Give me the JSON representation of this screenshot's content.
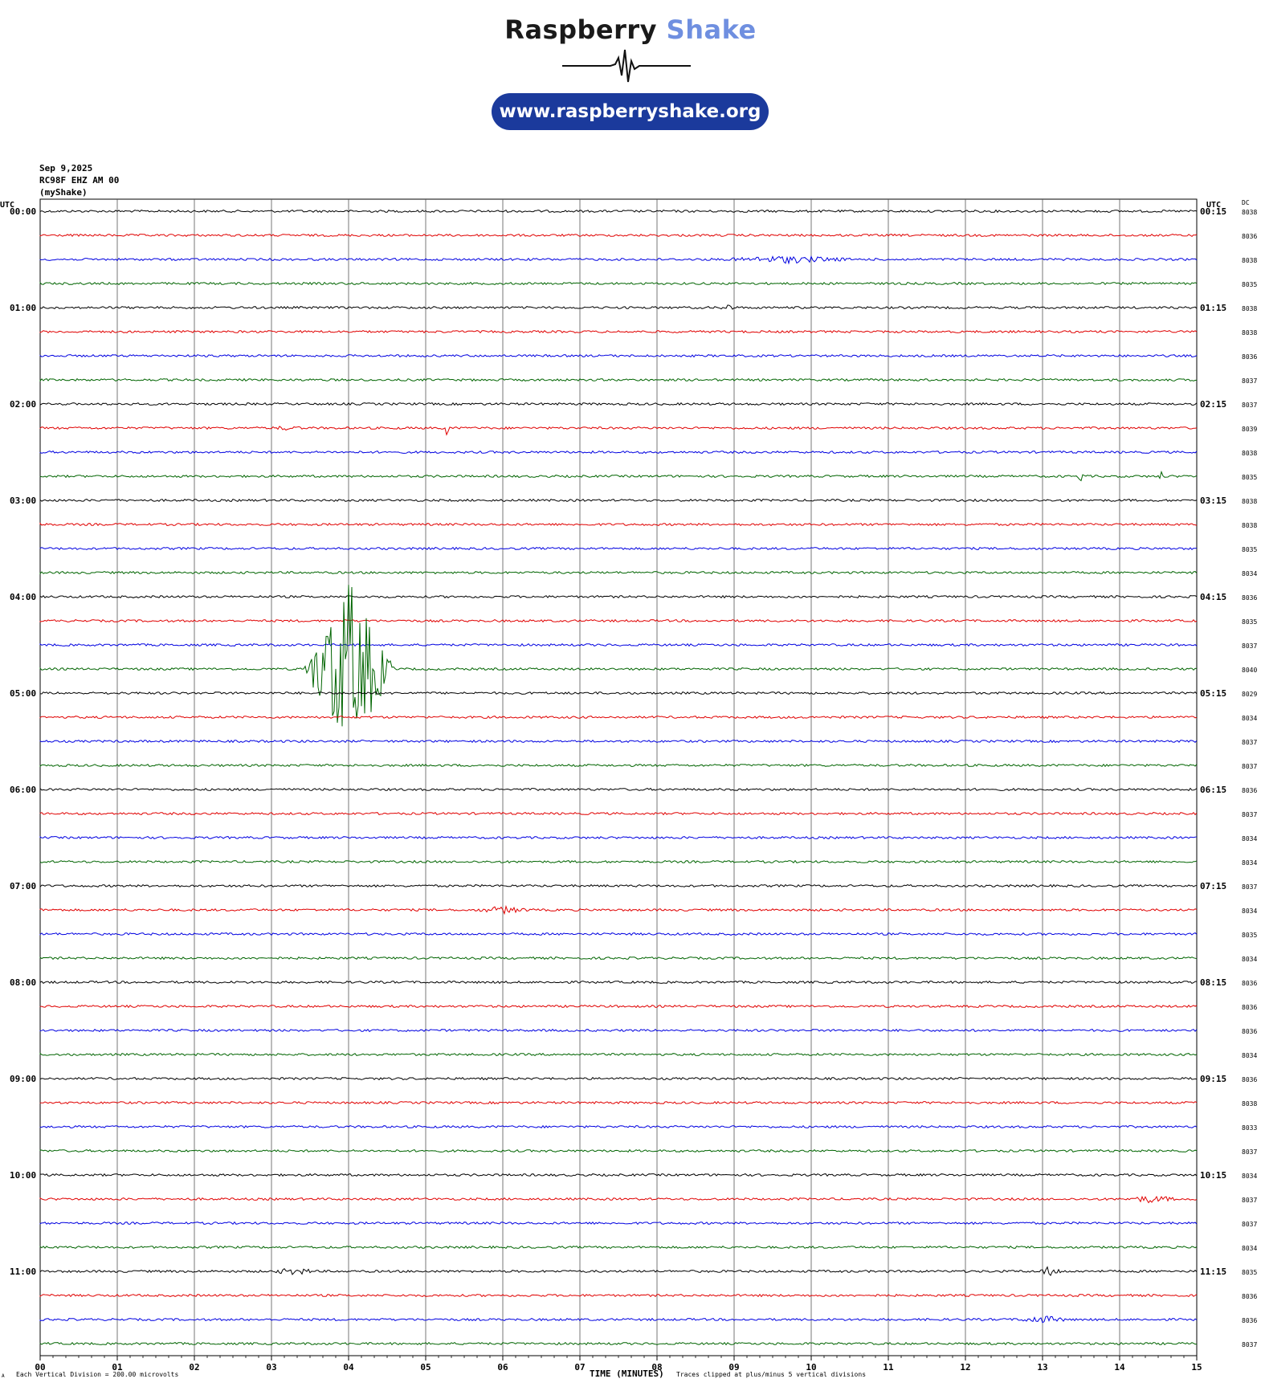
{
  "logo": {
    "word1": "Raspberry",
    "word2": "Shake",
    "url": "www.raspberryshake.org",
    "icon": "seismograph-wave-icon"
  },
  "header": {
    "date": "Sep 9,2025",
    "station": "RC98F EHZ AM 00",
    "network": "(myShake)"
  },
  "chart_data": {
    "type": "helicorder",
    "left_axis_title": "UTC",
    "right_axis_title": "UTC",
    "dc_title": "DC",
    "xlabel": "TIME (MINUTES)",
    "x_ticks": [
      "00",
      "01",
      "02",
      "03",
      "04",
      "05",
      "06",
      "07",
      "08",
      "09",
      "10",
      "11",
      "12",
      "13",
      "14",
      "15"
    ],
    "xlim": [
      0,
      15
    ],
    "left_hour_labels": [
      "00:00",
      "01:00",
      "02:00",
      "03:00",
      "04:00",
      "05:00",
      "06:00",
      "07:00",
      "08:00",
      "09:00",
      "10:00",
      "11:00"
    ],
    "right_hour_labels": [
      "00:15",
      "01:15",
      "02:15",
      "03:15",
      "04:15",
      "05:15",
      "06:15",
      "07:15",
      "08:15",
      "09:15",
      "10:15",
      "11:15"
    ],
    "dc_values": [
      "8038",
      "8036",
      "8038",
      "8035",
      "8038",
      "8038",
      "8036",
      "8037",
      "8037",
      "8039",
      "8038",
      "8035",
      "8038",
      "8038",
      "8035",
      "8034",
      "8036",
      "8035",
      "8037",
      "8040",
      "8029",
      "8034",
      "8037",
      "8037",
      "8036",
      "8037",
      "8034",
      "8034",
      "8037",
      "8034",
      "8035",
      "8034",
      "8036",
      "8036",
      "8036",
      "8034",
      "8036",
      "8038",
      "8033",
      "8037",
      "8034",
      "8037",
      "8037",
      "8034",
      "8035",
      "8036",
      "8036",
      "8037"
    ],
    "line_colors": [
      "#000000",
      "#e00000",
      "#0000e0",
      "#006400"
    ],
    "events": [
      {
        "row": 2,
        "minute": 9.7,
        "amp": 5,
        "width": 1.2
      },
      {
        "row": 4,
        "minute": 8.9,
        "amp": 5,
        "width": 0.15
      },
      {
        "row": 9,
        "minute": 5.27,
        "amp": 14,
        "width": 0.05
      },
      {
        "row": 9,
        "minute": 3.2,
        "amp": 3,
        "width": 0.4
      },
      {
        "row": 11,
        "minute": 13.5,
        "amp": 10,
        "width": 0.05
      },
      {
        "row": 11,
        "minute": 14.55,
        "amp": 8,
        "width": 0.05
      },
      {
        "row": 19,
        "minute": 4.0,
        "amp": 110,
        "width": 0.6
      },
      {
        "row": 29,
        "minute": 6.0,
        "amp": 5,
        "width": 0.5
      },
      {
        "row": 41,
        "minute": 14.4,
        "amp": 5,
        "width": 0.5
      },
      {
        "row": 44,
        "minute": 13.1,
        "amp": 7,
        "width": 0.2
      },
      {
        "row": 44,
        "minute": 3.3,
        "amp": 5,
        "width": 0.4
      },
      {
        "row": 46,
        "minute": 13.0,
        "amp": 5,
        "width": 0.5
      }
    ]
  },
  "footer": {
    "scale_note": "Each Vertical Division =  200.00 microvolts",
    "clip_note": "Traces clipped at plus/minus 5 vertical divisions",
    "corner_mark": "A"
  }
}
